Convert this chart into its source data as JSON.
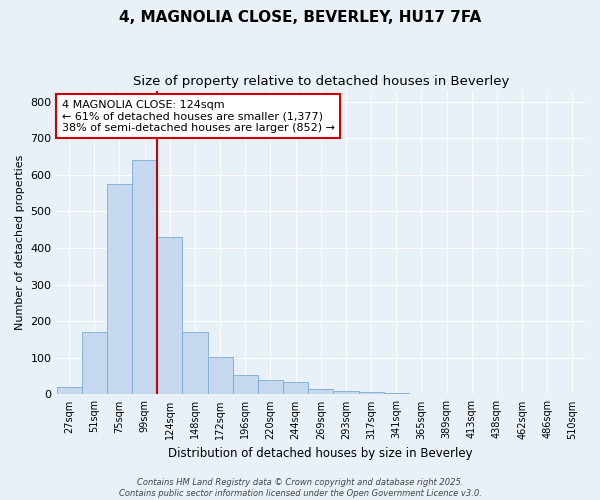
{
  "title": "4, MAGNOLIA CLOSE, BEVERLEY, HU17 7FA",
  "subtitle": "Size of property relative to detached houses in Beverley",
  "xlabel": "Distribution of detached houses by size in Beverley",
  "ylabel": "Number of detached properties",
  "bar_color": "#c5d8f0",
  "bar_edge_color": "#7aacd6",
  "background_color": "#e8f0f8",
  "plot_bg_color": "#e8f0f8",
  "grid_color": "#ffffff",
  "categories": [
    "27sqm",
    "51sqm",
    "75sqm",
    "99sqm",
    "124sqm",
    "148sqm",
    "172sqm",
    "196sqm",
    "220sqm",
    "244sqm",
    "269sqm",
    "293sqm",
    "317sqm",
    "341sqm",
    "365sqm",
    "389sqm",
    "413sqm",
    "438sqm",
    "462sqm",
    "486sqm",
    "510sqm"
  ],
  "values": [
    20,
    170,
    575,
    640,
    430,
    170,
    103,
    52,
    40,
    33,
    14,
    9,
    8,
    4,
    2,
    1,
    1,
    0,
    0,
    0,
    1
  ],
  "ylim": [
    0,
    830
  ],
  "yticks": [
    0,
    100,
    200,
    300,
    400,
    500,
    600,
    700,
    800
  ],
  "vline_index": 4,
  "vline_color": "#cc0000",
  "annotation_title": "4 MAGNOLIA CLOSE: 124sqm",
  "annotation_line1": "← 61% of detached houses are smaller (1,377)",
  "annotation_line2": "38% of semi-detached houses are larger (852) →",
  "annotation_box_color": "#ffffff",
  "annotation_box_edge": "#cc0000",
  "footer1": "Contains HM Land Registry data © Crown copyright and database right 2025.",
  "footer2": "Contains public sector information licensed under the Open Government Licence v3.0."
}
